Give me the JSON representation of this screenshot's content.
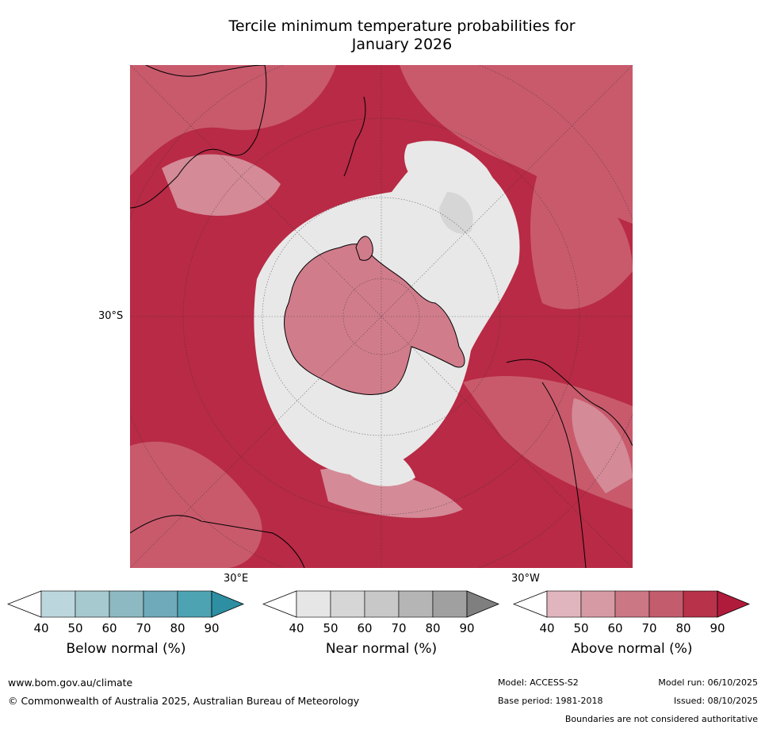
{
  "title_line1": "Tercile minimum temperature probabilities for",
  "title_line2": "January 2026",
  "map": {
    "projection": "south-polar-stereographic",
    "lat_label": "30°S",
    "lon_labels": [
      "30°E",
      "30°W"
    ],
    "colors": {
      "ocean_high": "#b82a45",
      "ocean_mid": "#c85a6c",
      "ocean_low": "#d48a97",
      "near_normal": "#e6e6e6",
      "coast": "#000000"
    }
  },
  "legends": [
    {
      "label": "Below normal (%)",
      "ticks": [
        "40",
        "50",
        "60",
        "70",
        "80",
        "90"
      ],
      "colors": [
        "#ffffff",
        "#bcd6dd",
        "#a6c8cf",
        "#8db9c2",
        "#6eaab9",
        "#4da3b2",
        "#2e8fa3"
      ]
    },
    {
      "label": "Near normal (%)",
      "ticks": [
        "40",
        "50",
        "60",
        "70",
        "80",
        "90"
      ],
      "colors": [
        "#ffffff",
        "#e6e6e6",
        "#d6d6d6",
        "#c8c8c8",
        "#b5b5b5",
        "#a0a0a0",
        "#7f7f7f"
      ]
    },
    {
      "label": "Above normal (%)",
      "ticks": [
        "40",
        "50",
        "60",
        "70",
        "80",
        "90"
      ],
      "colors": [
        "#ffffff",
        "#e1b5bd",
        "#d69aa4",
        "#cc7784",
        "#c35c6c",
        "#b83249",
        "#b01b3b"
      ]
    }
  ],
  "footer": {
    "url": "www.bom.gov.au/climate",
    "copyright": "© Commonwealth of Australia 2025, Australian Bureau of Meteorology",
    "model": "Model: ACCESS-S2",
    "base_period": "Base period: 1981-2018",
    "model_run": "Model run: 06/10/2025",
    "issued": "Issued: 08/10/2025",
    "disclaimer": "Boundaries are not considered authoritative"
  }
}
